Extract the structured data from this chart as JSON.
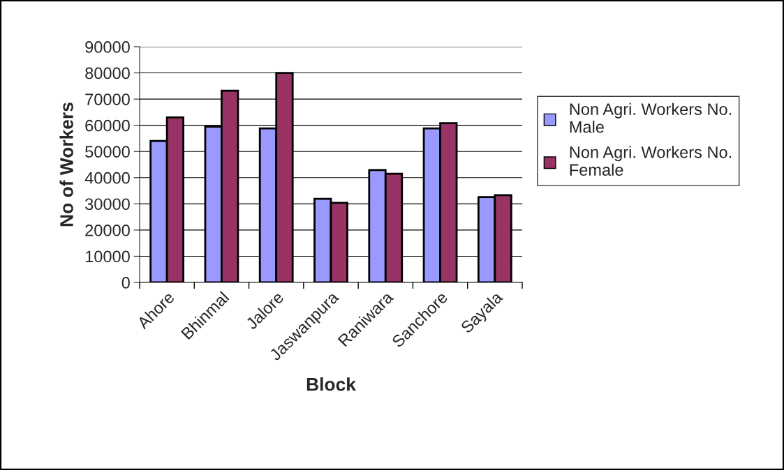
{
  "chart_data": {
    "type": "bar",
    "xlabel": "Block",
    "ylabel": "No of Workers",
    "categories": [
      "Ahore",
      "Bhinmal",
      "Jalore",
      "Jaswanpura",
      "Raniwara",
      "Sanchore",
      "Sayala"
    ],
    "series": [
      {
        "name": "Non Agri. Workers No.\nMale",
        "color": "#9999ff",
        "values": [
          54000,
          59500,
          58800,
          31900,
          42900,
          58800,
          32600
        ]
      },
      {
        "name": "Non Agri. Workers No.\nFemale",
        "color": "#993366",
        "values": [
          63000,
          73200,
          80000,
          30400,
          41500,
          60800,
          33300
        ]
      }
    ],
    "ylim": [
      0,
      90000
    ],
    "yticks": [
      0,
      10000,
      20000,
      30000,
      40000,
      50000,
      60000,
      70000,
      80000,
      90000
    ],
    "grid": "y",
    "legend": "right"
  }
}
